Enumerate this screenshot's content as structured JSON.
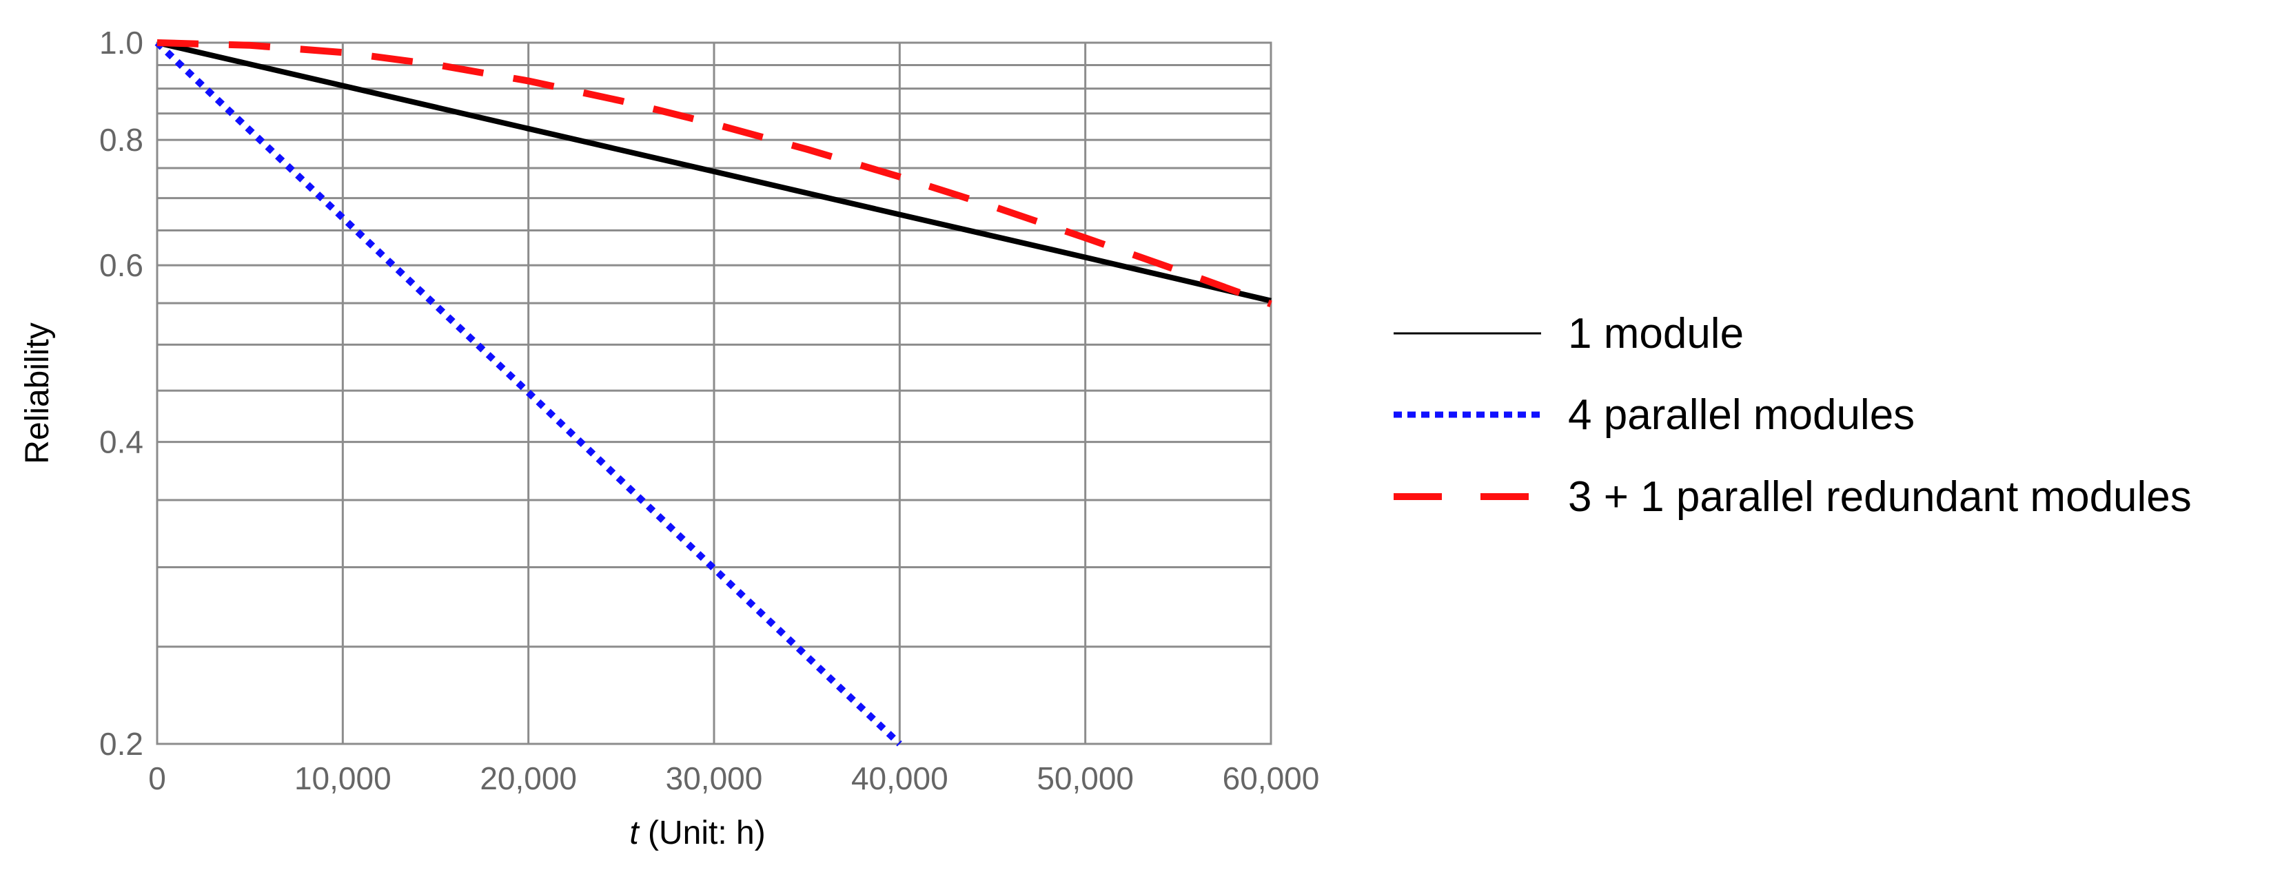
{
  "chart_data": {
    "type": "line",
    "title": "",
    "xlabel_italic": "t",
    "xlabel_rest": " (Unit: h)",
    "ylabel": "Reliability",
    "xlim": [
      0,
      60000
    ],
    "ylim": [
      0.2,
      1.0
    ],
    "y_scale": "log",
    "grid": true,
    "legend_position": "right",
    "x_ticks": [
      0,
      10000,
      20000,
      30000,
      40000,
      50000,
      60000
    ],
    "x_tick_labels": [
      "0",
      "10,000",
      "20,000",
      "30,000",
      "40,000",
      "50,000",
      "60,000"
    ],
    "y_ticks": [
      0.2,
      0.4,
      0.6,
      0.8,
      1.0
    ],
    "y_tick_labels": [
      "0.2",
      "0.4",
      "0.6",
      "0.8",
      "1.0"
    ],
    "y_minor_gridlines": [
      0.25,
      0.3,
      0.35,
      0.45,
      0.5,
      0.55,
      0.65,
      0.7,
      0.75,
      0.85,
      0.9,
      0.95
    ],
    "series": [
      {
        "name": "1 module",
        "color": "#000000",
        "style": "solid",
        "x": [
          0,
          10000,
          20000,
          30000,
          40000,
          50000,
          60000
        ],
        "y": [
          1.0,
          0.906,
          0.821,
          0.744,
          0.674,
          0.611,
          0.553
        ]
      },
      {
        "name": "4 parallel modules",
        "color": "#1010ff",
        "style": "dotted",
        "x": [
          0,
          10000,
          20000,
          30000,
          40000
        ],
        "y": [
          1.0,
          0.669,
          0.448,
          0.299,
          0.2
        ]
      },
      {
        "name": "3 + 1 parallel redundant modules",
        "color": "#ff1010",
        "style": "dashed",
        "x": [
          0,
          5000,
          10000,
          15000,
          20000,
          25000,
          30000,
          35000,
          40000,
          45000,
          50000,
          55000,
          60000
        ],
        "y": [
          1.0,
          0.994,
          0.978,
          0.951,
          0.916,
          0.875,
          0.83,
          0.783,
          0.735,
          0.687,
          0.639,
          0.593,
          0.549
        ]
      }
    ]
  }
}
